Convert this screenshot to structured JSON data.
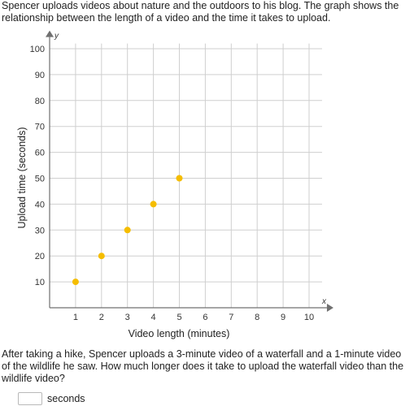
{
  "problem": {
    "intro": "Spencer uploads videos about nature and the outdoors to his blog. The graph shows the relationship between the length of a video and the time it takes to upload.",
    "question": "After taking a hike, Spencer uploads a 3-minute video of a waterfall and a 1-minute video of the wildlife he saw. How much longer does it take to upload the waterfall video than the wildlife video?",
    "answer_value": "",
    "answer_unit": "seconds"
  },
  "chart_data": {
    "type": "scatter",
    "x_axis_letter": "x",
    "y_axis_letter": "y",
    "xlabel": "Video length (minutes)",
    "ylabel": "Upload time (seconds)",
    "xlim": [
      0,
      10.5
    ],
    "ylim": [
      0,
      102
    ],
    "x_ticks": [
      1,
      2,
      3,
      4,
      5,
      6,
      7,
      8,
      9,
      10
    ],
    "y_ticks": [
      10,
      20,
      30,
      40,
      50,
      60,
      70,
      80,
      90,
      100
    ],
    "grid": true,
    "point_color": "#f5bd00",
    "series": [
      {
        "x": [
          1,
          2,
          3,
          4,
          5
        ],
        "y": [
          10,
          20,
          30,
          40,
          50
        ]
      }
    ]
  }
}
